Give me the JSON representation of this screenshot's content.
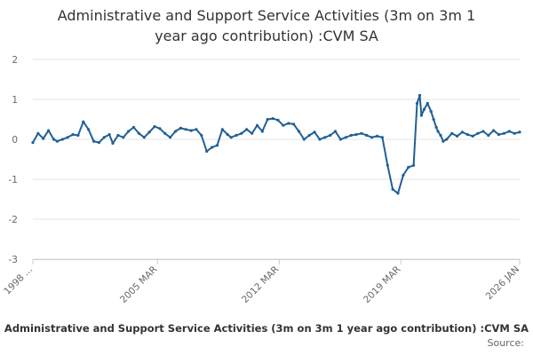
{
  "chart_data": {
    "type": "line",
    "title_lines": [
      "Administrative and Support Service Activities (3m on 3m 1",
      "year ago contribution) :CVM SA"
    ],
    "xlabel": "Administrative and Support Service Activities (3m on 3m 1 year ago contribution) :CVM SA",
    "ylabel": "",
    "ylim": [
      -3,
      2
    ],
    "yticks": [
      "2",
      "1",
      "0",
      "-1",
      "-2",
      "-3"
    ],
    "xlim": [
      1998.0,
      2026.0
    ],
    "xticks": [
      {
        "label": "1998 ...",
        "value": 1998.0
      },
      {
        "label": "2005 MAR",
        "value": 2005.17
      },
      {
        "label": "2012 MAR",
        "value": 2012.17
      },
      {
        "label": "2019 MAR",
        "value": 2019.17
      },
      {
        "label": "2026 JAN",
        "value": 2026.0
      }
    ],
    "grid": true,
    "series": [
      {
        "name": "Administrative and Support Service Activities (3m on 3m 1 year ago contribution) :CVM SA",
        "color": "#206095",
        "x": [
          1998.0,
          1998.3,
          1998.6,
          1998.9,
          1999.2,
          1999.4,
          1999.7,
          2000.0,
          2000.3,
          2000.6,
          2000.9,
          2001.2,
          2001.5,
          2001.8,
          2002.1,
          2002.4,
          2002.6,
          2002.9,
          2003.2,
          2003.5,
          2003.8,
          2004.1,
          2004.4,
          2004.7,
          2005.0,
          2005.3,
          2005.6,
          2005.9,
          2006.2,
          2006.5,
          2006.8,
          2007.1,
          2007.4,
          2007.7,
          2008.0,
          2008.3,
          2008.6,
          2008.9,
          2009.2,
          2009.4,
          2009.7,
          2010.0,
          2010.3,
          2010.6,
          2010.9,
          2011.2,
          2011.5,
          2011.8,
          2012.1,
          2012.4,
          2012.7,
          2013.0,
          2013.3,
          2013.6,
          2013.9,
          2014.2,
          2014.5,
          2014.8,
          2015.1,
          2015.4,
          2015.7,
          2016.0,
          2016.3,
          2016.6,
          2016.9,
          2017.2,
          2017.5,
          2017.8,
          2018.1,
          2018.4,
          2018.7,
          2019.0,
          2019.3,
          2019.6,
          2019.9,
          2020.1,
          2020.25,
          2020.35,
          2020.5,
          2020.7,
          2020.9,
          2021.05,
          2021.2,
          2021.3,
          2021.45,
          2021.6,
          2021.8,
          2022.1,
          2022.4,
          2022.7,
          2023.0,
          2023.3,
          2023.6,
          2023.9,
          2024.2,
          2024.5,
          2024.8,
          2025.1,
          2025.4,
          2025.7,
          2026.0
        ],
        "values": [
          -0.08,
          0.15,
          0.02,
          0.22,
          0.0,
          -0.05,
          0.0,
          0.05,
          0.12,
          0.1,
          0.44,
          0.25,
          -0.05,
          -0.08,
          0.05,
          0.12,
          -0.1,
          0.1,
          0.05,
          0.2,
          0.3,
          0.15,
          0.05,
          0.18,
          0.32,
          0.27,
          0.15,
          0.05,
          0.2,
          0.28,
          0.25,
          0.22,
          0.25,
          0.1,
          -0.3,
          -0.2,
          -0.15,
          0.25,
          0.12,
          0.05,
          0.1,
          0.15,
          0.25,
          0.15,
          0.35,
          0.2,
          0.5,
          0.52,
          0.48,
          0.35,
          0.4,
          0.38,
          0.2,
          0.0,
          0.1,
          0.18,
          0.0,
          0.05,
          0.1,
          0.2,
          0.0,
          0.05,
          0.1,
          0.12,
          0.15,
          0.1,
          0.05,
          0.08,
          0.05,
          -0.65,
          -1.25,
          -1.35,
          -0.9,
          -0.7,
          -0.65,
          0.9,
          1.1,
          0.6,
          0.75,
          0.9,
          0.7,
          0.5,
          0.3,
          0.2,
          0.1,
          -0.05,
          0.0,
          0.15,
          0.08,
          0.18,
          0.12,
          0.08,
          0.15,
          0.2,
          0.1,
          0.22,
          0.12,
          0.15,
          0.2,
          0.15,
          0.18
        ]
      }
    ]
  },
  "source_label": "Source:"
}
